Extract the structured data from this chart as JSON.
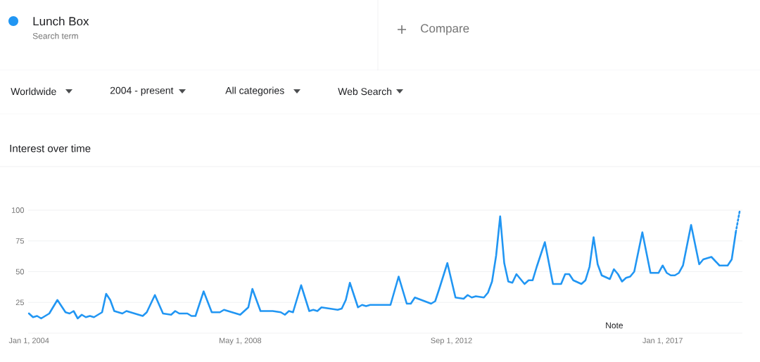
{
  "chart_data": {
    "type": "line",
    "title": "Interest over time",
    "annotations": [
      "Search term",
      "Compare",
      "Worldwide",
      "2004 - present",
      "All categories",
      "Web Search",
      "Note"
    ],
    "xlim": [
      "2003-12-25",
      "2018-08-20"
    ],
    "xticks": [
      {
        "value": "2004-01-01",
        "label": "Jan 1, 2004"
      },
      {
        "value": "2008-05-01",
        "label": "May 1, 2008"
      },
      {
        "value": "2012-09-01",
        "label": "Sep 1, 2012"
      },
      {
        "value": "2017-01-01",
        "label": "Jan 1, 2017"
      }
    ],
    "ylim": [
      0,
      100
    ],
    "yticks": [
      25,
      50,
      75,
      100
    ],
    "grid": "y",
    "legend": "top left",
    "series": [
      {
        "name": "Lunch Box",
        "color": "#2196f3",
        "line_style": "solid",
        "x": [
          "2004-01",
          "2004-02",
          "2004-03",
          "2004-04",
          "2004-06",
          "2004-08",
          "2004-10",
          "2004-11",
          "2004-12",
          "2005-01",
          "2005-02",
          "2005-03",
          "2005-04",
          "2005-05",
          "2005-07",
          "2005-08",
          "2005-09",
          "2005-10",
          "2005-12",
          "2006-01",
          "2006-03",
          "2006-04",
          "2006-05",
          "2006-06",
          "2006-08",
          "2006-10",
          "2006-12",
          "2007-01",
          "2007-02",
          "2007-04",
          "2007-05",
          "2007-06",
          "2007-08",
          "2007-10",
          "2007-12",
          "2008-01",
          "2008-03",
          "2008-05",
          "2008-07",
          "2008-08",
          "2008-10",
          "2009-01",
          "2009-03",
          "2009-04",
          "2009-05",
          "2009-06",
          "2009-08",
          "2009-10",
          "2009-11",
          "2009-12",
          "2010-01",
          "2010-03",
          "2010-05",
          "2010-06",
          "2010-07",
          "2010-08",
          "2010-10",
          "2010-11",
          "2010-12",
          "2011-01",
          "2011-03",
          "2011-04",
          "2011-06",
          "2011-08",
          "2011-10",
          "2011-11",
          "2011-12",
          "2012-04",
          "2012-05",
          "2012-06",
          "2012-08",
          "2012-10",
          "2012-12",
          "2013-01",
          "2013-02",
          "2013-03",
          "2013-05",
          "2013-06",
          "2013-07",
          "2013-08",
          "2013-09",
          "2013-10",
          "2013-11",
          "2013-12",
          "2014-01",
          "2014-03",
          "2014-04",
          "2014-05",
          "2014-06",
          "2014-08",
          "2014-10",
          "2014-12",
          "2015-01",
          "2015-02",
          "2015-03",
          "2015-05",
          "2015-06",
          "2015-07",
          "2015-08",
          "2015-09",
          "2015-10",
          "2015-12",
          "2016-01",
          "2016-02",
          "2016-03",
          "2016-04",
          "2016-05",
          "2016-06",
          "2016-08",
          "2016-10",
          "2016-12",
          "2017-01",
          "2017-02",
          "2017-03",
          "2017-04",
          "2017-05",
          "2017-06",
          "2017-08",
          "2017-10",
          "2017-11",
          "2018-01",
          "2018-03",
          "2018-04",
          "2018-05",
          "2018-06",
          "2018-07"
        ],
        "values": [
          16,
          13,
          14,
          12,
          16,
          27,
          17,
          16,
          18,
          12,
          15,
          13,
          14,
          13,
          17,
          32,
          27,
          18,
          16,
          18,
          16,
          15,
          14,
          17,
          31,
          16,
          15,
          18,
          16,
          16,
          14,
          14,
          34,
          17,
          17,
          19,
          17,
          15,
          21,
          36,
          18,
          18,
          17,
          15,
          18,
          17,
          39,
          18,
          19,
          18,
          21,
          20,
          19,
          20,
          27,
          41,
          21,
          23,
          22,
          23,
          23,
          23,
          23,
          46,
          24,
          24,
          29,
          24,
          26,
          36,
          57,
          29,
          28,
          31,
          29,
          30,
          29,
          33,
          42,
          63,
          95,
          57,
          42,
          41,
          48,
          40,
          43,
          43,
          54,
          74,
          40,
          40,
          48,
          48,
          43,
          40,
          43,
          54,
          78,
          56,
          47,
          44,
          52,
          48,
          42,
          45,
          46,
          50,
          82,
          49,
          49,
          55,
          49,
          47,
          47,
          49,
          55,
          88,
          56,
          60,
          62,
          55,
          55,
          55,
          60,
          82
        ]
      },
      {
        "color": "#2196f3",
        "line_style": "dotted",
        "x": [
          "2018-07",
          "2018-08"
        ],
        "values": [
          82,
          100
        ]
      }
    ]
  }
}
